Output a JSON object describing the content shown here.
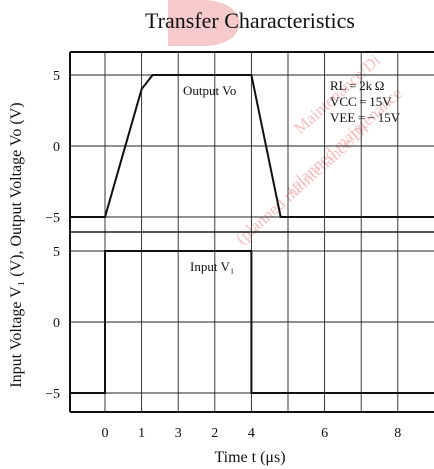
{
  "chart_data": [
    {
      "type": "line",
      "title": "Transfer Characteristics",
      "xlabel": "Time t (μs)",
      "ylabel": "Input Voltage V₁ (V), Output Voltage Vo (V)",
      "xlim": [
        -1,
        9
      ],
      "ylim": [
        -6,
        6
      ],
      "x_ticks": [
        "0",
        "1",
        "3",
        "2",
        "4",
        "6",
        "8"
      ],
      "y_ticks": [
        "5",
        "0",
        "−5"
      ],
      "grid": true,
      "series": [
        {
          "name": "Output Vo",
          "x": [
            -1,
            0,
            1,
            1.3,
            4,
            4.8,
            9
          ],
          "y": [
            -5,
            -5,
            4,
            5,
            5,
            -5,
            -5
          ]
        }
      ],
      "annotations": {
        "series_label": "Output Vo",
        "conditions": [
          "RL = 2k Ω",
          "VCC = 15V",
          "VEE = − 15V"
        ]
      }
    },
    {
      "type": "line",
      "xlim": [
        -1,
        9
      ],
      "ylim": [
        -6,
        6
      ],
      "x_ticks": [
        "0",
        "1",
        "3",
        "2",
        "4",
        "6",
        "8"
      ],
      "y_ticks": [
        "5",
        "0",
        "−5"
      ],
      "grid": true,
      "series": [
        {
          "name": "Input V₁",
          "x": [
            -1,
            0,
            0,
            4,
            4,
            9
          ],
          "y": [
            -5,
            -5,
            5,
            5,
            -5,
            -5
          ]
        }
      ],
      "annotations": {
        "series_label": "Input V₁"
      }
    }
  ],
  "watermark": [
    "(planned maintenance/Di",
    "Maintenance/Di",
    "(planned maintenance"
  ]
}
